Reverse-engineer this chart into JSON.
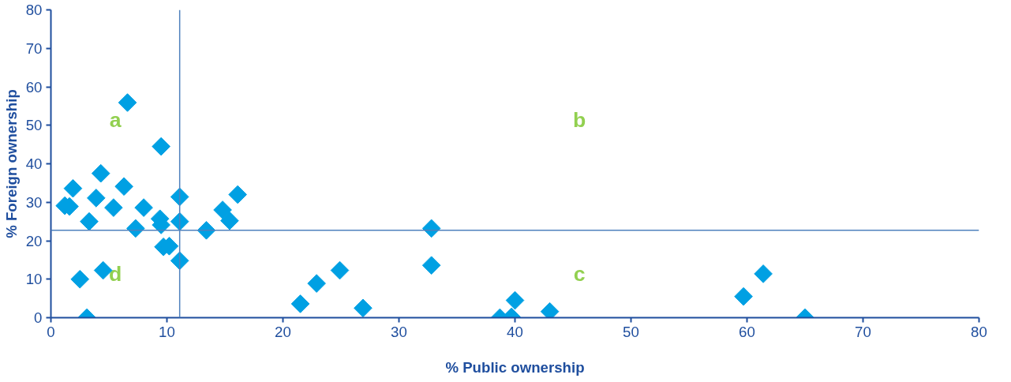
{
  "chart_data": {
    "type": "scatter",
    "xlabel": "% Public ownership",
    "ylabel": "% Foreign ownership",
    "marker": "diamond",
    "grid": false,
    "xlim": [
      0,
      80
    ],
    "ylim": [
      0,
      80
    ],
    "xticks": [
      0,
      10,
      20,
      30,
      40,
      50,
      60,
      70,
      80
    ],
    "yticks": [
      0,
      10,
      20,
      30,
      40,
      50,
      60,
      70,
      80
    ],
    "series": [
      {
        "color": "#00a0e3",
        "x": [
          6.6,
          9.5,
          4.3,
          1.9,
          6.3,
          3.9,
          11.1,
          16.1,
          1.2,
          1.6,
          5.4,
          8.0,
          14.8,
          9.4,
          3.3,
          11.1,
          15.4,
          7.3,
          9.5,
          13.4,
          9.7,
          10.2,
          11.1,
          2.5,
          4.5,
          3.1,
          32.8,
          32.8,
          21.5,
          22.9,
          24.9,
          26.9,
          38.7,
          39.7,
          40.0,
          43.0,
          59.7,
          61.4,
          65.0
        ],
        "values": [
          55.9,
          44.5,
          37.5,
          33.6,
          34.1,
          31.1,
          31.4,
          32.0,
          29.1,
          28.9,
          28.6,
          28.6,
          28.0,
          25.7,
          25.0,
          25.0,
          25.2,
          23.2,
          24.1,
          22.7,
          18.4,
          18.6,
          14.8,
          10.0,
          12.3,
          0,
          23.2,
          13.6,
          3.6,
          8.9,
          12.3,
          2.5,
          0,
          0.2,
          4.5,
          1.6,
          5.5,
          11.4,
          0
        ]
      }
    ],
    "ref_lines": [
      {
        "axis": "x",
        "value": 11.1,
        "color": "#4f81bd"
      },
      {
        "axis": "y",
        "value": 22.7,
        "color": "#4f81bd"
      }
    ],
    "annotations": [
      "a",
      "b",
      "c",
      "d"
    ]
  }
}
